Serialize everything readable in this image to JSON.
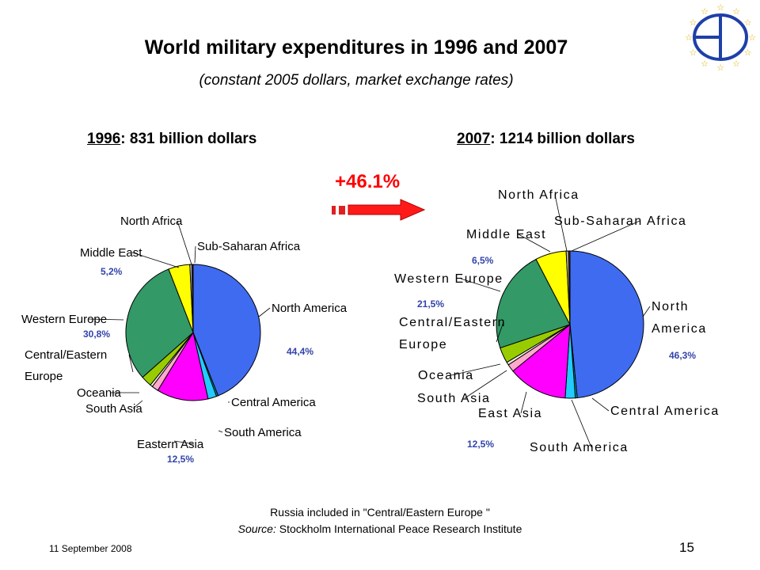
{
  "slide": {
    "title": "World military expenditures in 1996 and 2007",
    "subtitle": "(constant 2005 dollars, market exchange rates)",
    "growth_label": "+46.1%",
    "note": "Russia included in \"Central/Eastern Europe \"",
    "source_prefix": "Source:",
    "source_name": " Stockholm International Peace Research Institute",
    "date": "11 September 2008",
    "page_number": "15"
  },
  "chart_data": [
    {
      "type": "pie",
      "year_label": "1996",
      "total_label": ": 831 billion dollars",
      "slices": [
        {
          "name": "North America",
          "value": 44.4,
          "color": "#3f6bf0",
          "pct_label": "44,4%"
        },
        {
          "name": "Central America",
          "value": 0.4,
          "color": "#00aaaa",
          "pct_label": ""
        },
        {
          "name": "South America",
          "value": 2.1,
          "color": "#22ccff",
          "pct_label": ""
        },
        {
          "name": "Eastern Asia",
          "value": 12.5,
          "color": "#ff00ff",
          "pct_label": "12,5%"
        },
        {
          "name": "South Asia",
          "value": 1.6,
          "color": "#ffaacc",
          "pct_label": ""
        },
        {
          "name": "Oceania",
          "value": 0.6,
          "color": "#f0f0e0",
          "pct_label": ""
        },
        {
          "name": "Central/Eastern\nEurope",
          "value": 2.6,
          "color": "#99cc00",
          "pct_label": ""
        },
        {
          "name": "Western Europe",
          "value": 30.8,
          "color": "#339966",
          "pct_label": "30,8%"
        },
        {
          "name": "Middle East",
          "value": 5.2,
          "color": "#ffff00",
          "pct_label": "5,2%"
        },
        {
          "name": "North Africa",
          "value": 0.5,
          "color": "#c0c0c0",
          "pct_label": ""
        },
        {
          "name": "Sub-Saharan Africa",
          "value": 0.3,
          "color": "#663300",
          "pct_label": ""
        }
      ]
    },
    {
      "type": "pie",
      "year_label": "2007",
      "total_label": ": 1214 billion dollars",
      "slices": [
        {
          "name": "North\nAmerica",
          "value": 46.3,
          "color": "#3f6bf0",
          "pct_label": "46,3%"
        },
        {
          "name": "Central America",
          "value": 0.4,
          "color": "#00aaaa",
          "pct_label": ""
        },
        {
          "name": "South America",
          "value": 2.1,
          "color": "#22ccff",
          "pct_label": ""
        },
        {
          "name": "East Asia",
          "value": 12.5,
          "color": "#ff00ff",
          "pct_label": "12,5%"
        },
        {
          "name": "South Asia",
          "value": 1.6,
          "color": "#ffaacc",
          "pct_label": ""
        },
        {
          "name": "Oceania",
          "value": 0.6,
          "color": "#f0f0e0",
          "pct_label": ""
        },
        {
          "name": "Central/Eastern\nEurope",
          "value": 3.3,
          "color": "#99cc00",
          "pct_label": ""
        },
        {
          "name": "Western Europe",
          "value": 21.5,
          "color": "#339966",
          "pct_label": "21,5%"
        },
        {
          "name": "Middle East",
          "value": 6.5,
          "color": "#ffff00",
          "pct_label": "6,5%"
        },
        {
          "name": "North Africa",
          "value": 0.5,
          "color": "#c0c0c0",
          "pct_label": ""
        },
        {
          "name": "Sub-Saharan Africa",
          "value": 0.3,
          "color": "#663300",
          "pct_label": ""
        }
      ]
    }
  ]
}
